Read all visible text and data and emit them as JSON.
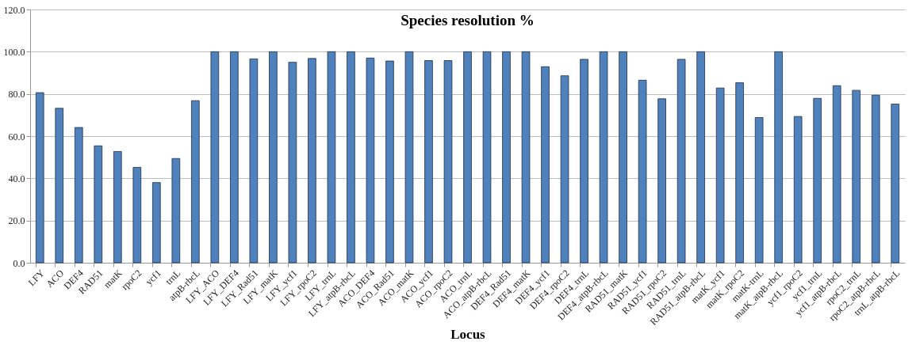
{
  "chart_data": {
    "type": "bar",
    "title": "Species resolution %",
    "xlabel": "Locus",
    "categories": [
      "LFY",
      "ACO",
      "DEF4",
      "RAD51",
      "matK",
      "rpoC2",
      "ycf1",
      "trnL",
      "atpB-rbcL",
      "LFY_ACO",
      "LFY_DEF4",
      "LFY_Rad51",
      "LFY_matK",
      "LFY_ycf1",
      "LFY_rpoC2",
      "LFY_trnL",
      "LFY_atpB-rbcL",
      "ACO_DEF4",
      "ACO_Rad51",
      "ACO_matK",
      "ACO_ycf1",
      "ACO_rpoC2",
      "ACO_trnL",
      "ACO_atpB-rbcL",
      "DEF4_Rad51",
      "DEF4_matK",
      "DEF4_ycf1",
      "DEF4_rpoC2",
      "DEF4_trnL",
      "DEF4_atpB-rbcL",
      "RAD51_matK",
      "RAD51_ycf1",
      "RAD51_rpoC2",
      "RAD51_trnL",
      "RAD51_atpB-rbcL",
      "matK_ycf1",
      "matK_rpoC2",
      "matK-trnL",
      "matK_atpB-rbcL",
      "ycf1_rpoC2",
      "ycf1_trnL",
      "ycf1_atpB-rbcL",
      "rpoC2_trnL",
      "rpoC2_atpB-rbcL",
      "trnL_atpB-rbcL"
    ],
    "values": [
      80.6,
      73.2,
      64.1,
      55.4,
      52.7,
      45.2,
      38.0,
      49.4,
      76.8,
      100,
      100,
      96.6,
      100,
      95.0,
      96.8,
      100,
      100,
      97.0,
      95.6,
      100,
      95.8,
      95.8,
      100,
      100,
      100,
      100,
      92.9,
      88.6,
      96.4,
      100,
      100,
      86.5,
      77.7,
      96.4,
      100,
      82.8,
      85.3,
      68.8,
      100,
      69.3,
      77.9,
      83.9,
      81.7,
      79.4,
      75.2
    ],
    "color": "#4f81bd",
    "ylim": [
      0,
      120
    ],
    "yticks": [
      {
        "value": 0,
        "label": "0.0"
      },
      {
        "value": 20,
        "label": "20.0"
      },
      {
        "value": 40,
        "label": "40.0"
      },
      {
        "value": 60,
        "label": "60.0"
      },
      {
        "value": 80,
        "label": "80.0"
      },
      {
        "value": 100,
        "label": "100.0"
      },
      {
        "value": 120,
        "label": "120.0"
      }
    ],
    "grid": "y"
  }
}
